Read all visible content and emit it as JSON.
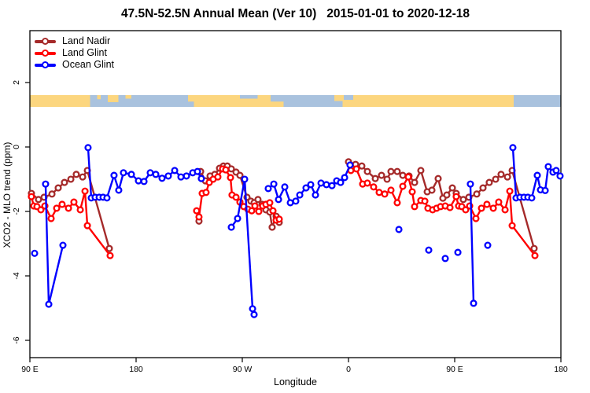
{
  "title": "47.5N-52.5N Annual Mean (Ver 10)   2015-01-01 to 2020-12-18",
  "legend": {
    "items": [
      {
        "label": "Land Nadir",
        "color": "#A52A2A"
      },
      {
        "label": "Land Glint",
        "color": "#FF0000"
      },
      {
        "label": "Ocean Glint",
        "color": "#0000FF"
      }
    ]
  },
  "chart_data": {
    "type": "line",
    "title": "47.5N-52.5N Annual Mean (Ver 10)   2015-01-01 to 2020-12-18",
    "xlabel": "Longitude",
    "ylabel": "XCO2 - MLO trend (ppm)",
    "xlim": [
      90,
      540
    ],
    "ylim": [
      -6.55,
      3.6
    ],
    "grid": false,
    "legend_position": "top-left",
    "x_ticks": [
      {
        "lon": 90,
        "label": "90 E"
      },
      {
        "lon": 180,
        "label": "180"
      },
      {
        "lon": 270,
        "label": "90 W"
      },
      {
        "lon": 360,
        "label": "0"
      },
      {
        "lon": 450,
        "label": "90 E"
      },
      {
        "lon": 540,
        "label": "180"
      }
    ],
    "y_ticks": [
      2,
      0,
      -2,
      -4,
      -6
    ],
    "surface_band": {
      "description": "land/ocean strip vs longitude",
      "land_color": "#FCD67F",
      "ocean_color": "#A9C2DE",
      "y_ppm": [
        1.25,
        1.6
      ],
      "segments": [
        {
          "from": 90,
          "to": 141,
          "surface": "land"
        },
        {
          "from": 141,
          "to": 229,
          "surface": "ocean"
        },
        {
          "from": 229,
          "to": 305,
          "surface": "land"
        },
        {
          "from": 305,
          "to": 355,
          "surface": "ocean"
        },
        {
          "from": 355,
          "to": 500,
          "surface": "land"
        },
        {
          "from": 500,
          "to": 540,
          "surface": "ocean"
        }
      ],
      "patches": [
        {
          "from": 147,
          "to": 150,
          "surface": "land",
          "top": 0,
          "frac": 0.35
        },
        {
          "from": 156,
          "to": 165,
          "surface": "land",
          "top": 0,
          "frac": 0.6
        },
        {
          "from": 171,
          "to": 176,
          "surface": "land",
          "top": 0,
          "frac": 0.3
        },
        {
          "from": 224,
          "to": 229,
          "surface": "land",
          "top": 0,
          "frac": 0.55
        },
        {
          "from": 268,
          "to": 283,
          "surface": "ocean",
          "top": 0,
          "frac": 0.3
        },
        {
          "from": 294,
          "to": 305,
          "surface": "ocean",
          "top": 0,
          "frac": 0.55
        },
        {
          "from": 348,
          "to": 355,
          "surface": "land",
          "top": 0,
          "frac": 0.5
        },
        {
          "from": 356,
          "to": 364,
          "surface": "ocean",
          "top": 0,
          "frac": 0.4
        }
      ]
    },
    "series": [
      {
        "name": "Land Nadir",
        "color": "#A52A2A",
        "segments": [
          [
            [
              91.3,
              -1.44
            ],
            [
              97.3,
              -1.63
            ],
            [
              102,
              -1.56
            ],
            [
              108.7,
              -1.46
            ],
            [
              114,
              -1.27
            ],
            [
              119.3,
              -1.1
            ],
            [
              124.7,
              -1.0
            ],
            [
              129.3,
              -0.85
            ],
            [
              134.7,
              -0.93
            ],
            [
              138.7,
              -0.73
            ],
            [
              157.3,
              -3.15
            ]
          ],
          [
            [
              233.3,
              -2.3
            ]
          ],
          [
            [
              234.7,
              -0.76
            ],
            [
              238.7,
              -1.05
            ],
            [
              242.7,
              -0.9
            ],
            [
              246.7,
              -0.85
            ],
            [
              250.7,
              -0.66
            ],
            [
              254,
              -0.59
            ],
            [
              257.3,
              -0.59
            ],
            [
              260.7,
              -0.68
            ],
            [
              264.7,
              -0.78
            ],
            [
              268,
              -0.88
            ],
            [
              274,
              -1.56
            ],
            [
              277.3,
              -1.68
            ],
            [
              280,
              -1.73
            ],
            [
              283.3,
              -1.63
            ],
            [
              286.7,
              -1.78
            ],
            [
              290,
              -1.95
            ],
            [
              293.3,
              -2.02
            ],
            [
              295.3,
              -2.49
            ],
            [
              298.7,
              -2.15
            ],
            [
              301.3,
              -2.34
            ]
          ],
          [
            [
              360,
              -0.46
            ],
            [
              366,
              -0.54
            ],
            [
              371.3,
              -0.59
            ],
            [
              376,
              -0.76
            ],
            [
              382.7,
              -0.98
            ],
            [
              388,
              -0.88
            ],
            [
              392.7,
              -1.0
            ],
            [
              396,
              -0.76
            ],
            [
              401.3,
              -0.76
            ],
            [
              406,
              -0.88
            ],
            [
              411.3,
              -0.9
            ],
            [
              416,
              -1.1
            ],
            [
              421.3,
              -0.73
            ],
            [
              426.7,
              -1.39
            ],
            [
              430.7,
              -1.34
            ],
            [
              436,
              -0.98
            ],
            [
              440,
              -1.59
            ],
            [
              443.3,
              -1.49
            ],
            [
              448,
              -1.27
            ],
            [
              451.3,
              -1.44
            ],
            [
              457.3,
              -1.63
            ],
            [
              462,
              -1.56
            ],
            [
              468.7,
              -1.46
            ],
            [
              474,
              -1.27
            ],
            [
              479.3,
              -1.1
            ],
            [
              484.7,
              -1.0
            ],
            [
              489.3,
              -0.85
            ],
            [
              494.7,
              -0.93
            ],
            [
              498.7,
              -0.73
            ],
            [
              517.3,
              -3.15
            ]
          ]
        ]
      },
      {
        "name": "Land Glint",
        "color": "#FF0000",
        "segments": [
          [
            [
              91.3,
              -1.54
            ],
            [
              93.3,
              -1.83
            ],
            [
              96,
              -1.85
            ],
            [
              99.3,
              -1.95
            ],
            [
              102.7,
              -1.83
            ],
            [
              108,
              -2.22
            ],
            [
              112.7,
              -1.9
            ],
            [
              117.3,
              -1.78
            ],
            [
              122.7,
              -1.9
            ],
            [
              127.3,
              -1.71
            ],
            [
              132.7,
              -1.95
            ],
            [
              136.7,
              -1.37
            ],
            [
              138.7,
              -2.44
            ],
            [
              158,
              -3.37
            ]
          ],
          [
            [
              231.3,
              -1.98
            ],
            [
              233.3,
              -2.17
            ],
            [
              236,
              -1.44
            ],
            [
              239.3,
              -1.41
            ],
            [
              242,
              -1.1
            ],
            [
              245.3,
              -1.0
            ],
            [
              249.3,
              -0.93
            ],
            [
              253.3,
              -0.68
            ],
            [
              256,
              -0.71
            ],
            [
              260,
              -0.95
            ],
            [
              261.3,
              -1.49
            ],
            [
              264.7,
              -1.56
            ],
            [
              268,
              -1.71
            ],
            [
              271.3,
              -1.85
            ],
            [
              274.7,
              -1.93
            ],
            [
              278,
              -1.98
            ],
            [
              280.7,
              -1.83
            ],
            [
              284,
              -2.0
            ],
            [
              287.3,
              -1.83
            ],
            [
              290,
              -1.78
            ],
            [
              293.3,
              -1.73
            ],
            [
              296,
              -1.98
            ],
            [
              298.7,
              -2.27
            ],
            [
              301.3,
              -2.24
            ]
          ],
          [
            [
              362,
              -0.73
            ],
            [
              366.7,
              -0.68
            ],
            [
              372,
              -1.15
            ],
            [
              376,
              -1.12
            ],
            [
              381.3,
              -1.24
            ],
            [
              386,
              -1.41
            ],
            [
              390.7,
              -1.46
            ],
            [
              396,
              -1.34
            ],
            [
              401.3,
              -1.73
            ],
            [
              406,
              -1.22
            ],
            [
              410.7,
              -0.93
            ],
            [
              414,
              -1.39
            ],
            [
              416,
              -1.85
            ],
            [
              421.3,
              -1.66
            ],
            [
              424.7,
              -1.68
            ],
            [
              427.3,
              -1.9
            ],
            [
              431.3,
              -1.95
            ],
            [
              434.7,
              -1.9
            ],
            [
              438,
              -1.85
            ],
            [
              442,
              -1.83
            ],
            [
              446,
              -1.88
            ],
            [
              451.3,
              -1.54
            ],
            [
              453.3,
              -1.83
            ],
            [
              456,
              -1.85
            ],
            [
              459.3,
              -1.95
            ],
            [
              462.7,
              -1.83
            ],
            [
              468,
              -2.22
            ],
            [
              472.7,
              -1.9
            ],
            [
              477.3,
              -1.78
            ],
            [
              482.7,
              -1.9
            ],
            [
              487.3,
              -1.71
            ],
            [
              492.7,
              -1.95
            ],
            [
              496.7,
              -1.37
            ],
            [
              498.7,
              -2.44
            ],
            [
              518,
              -3.37
            ]
          ]
        ]
      },
      {
        "name": "Ocean Glint",
        "color": "#0000FF",
        "segments": [
          [
            [
              94,
              -3.3
            ]
          ],
          [
            [
              103.3,
              -1.15
            ],
            [
              106,
              -4.88
            ],
            [
              118,
              -3.05
            ]
          ],
          [
            [
              139.3,
              -0.02
            ],
            [
              142,
              -1.58
            ],
            [
              145.3,
              -1.56
            ],
            [
              148.7,
              -1.56
            ],
            [
              152,
              -1.56
            ],
            [
              155.3,
              -1.58
            ],
            [
              161.3,
              -0.88
            ],
            [
              165.3,
              -1.34
            ],
            [
              169.3,
              -0.8
            ],
            [
              176,
              -0.85
            ],
            [
              182,
              -1.05
            ],
            [
              186.7,
              -1.07
            ],
            [
              192,
              -0.8
            ],
            [
              196.7,
              -0.85
            ],
            [
              202,
              -0.97
            ],
            [
              207.3,
              -0.9
            ],
            [
              212.7,
              -0.73
            ],
            [
              218,
              -0.93
            ],
            [
              222.7,
              -0.9
            ],
            [
              228,
              -0.8
            ],
            [
              232,
              -0.76
            ],
            [
              235.3,
              -0.98
            ]
          ],
          [
            [
              260.7,
              -2.49
            ],
            [
              266,
              -2.22
            ],
            [
              272,
              -1.0
            ],
            [
              278.7,
              -5.02
            ],
            [
              280,
              -5.2
            ]
          ],
          [
            [
              292,
              -1.29
            ],
            [
              296.7,
              -1.15
            ],
            [
              300.7,
              -1.63
            ],
            [
              306,
              -1.24
            ],
            [
              310.7,
              -1.73
            ],
            [
              315.3,
              -1.68
            ],
            [
              318.7,
              -1.49
            ],
            [
              324,
              -1.27
            ],
            [
              328,
              -1.17
            ],
            [
              332,
              -1.49
            ],
            [
              336.7,
              -1.12
            ],
            [
              341.3,
              -1.17
            ],
            [
              346,
              -1.2
            ],
            [
              350,
              -1.05
            ],
            [
              353.3,
              -1.1
            ],
            [
              356.7,
              -0.95
            ],
            [
              361.3,
              -0.56
            ]
          ],
          [
            [
              402.7,
              -2.56
            ]
          ],
          [
            [
              428,
              -3.2
            ]
          ],
          [
            [
              442,
              -3.46
            ]
          ],
          [
            [
              452.7,
              -3.27
            ]
          ],
          [
            [
              463.3,
              -1.15
            ],
            [
              466,
              -4.85
            ]
          ],
          [
            [
              478,
              -3.05
            ]
          ],
          [
            [
              499.3,
              -0.02
            ],
            [
              502,
              -1.58
            ],
            [
              505.3,
              -1.56
            ],
            [
              508.7,
              -1.56
            ],
            [
              512,
              -1.56
            ],
            [
              515.3,
              -1.58
            ],
            [
              520,
              -0.88
            ],
            [
              522.7,
              -1.33
            ],
            [
              526.7,
              -1.35
            ],
            [
              529.3,
              -0.61
            ],
            [
              533.3,
              -0.78
            ],
            [
              536,
              -0.73
            ],
            [
              539.3,
              -0.9
            ]
          ]
        ]
      }
    ]
  }
}
